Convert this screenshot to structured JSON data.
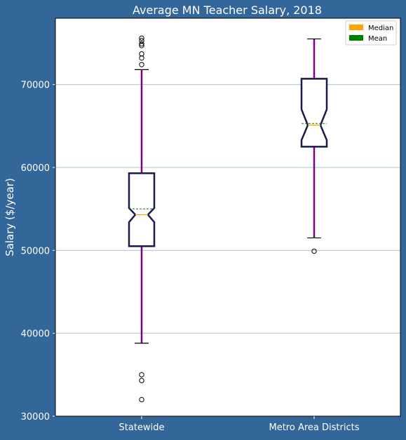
{
  "chart_data": {
    "type": "boxplot",
    "title": "Average MN Teacher Salary, 2018",
    "xlabel": "",
    "ylabel": "Salary ($/year)",
    "ylim": [
      30000,
      78000
    ],
    "yticks": [
      30000,
      40000,
      50000,
      60000,
      70000
    ],
    "ytick_labels": [
      "30000",
      "40000",
      "50000",
      "60000",
      "70000"
    ],
    "grid": "horizontal",
    "notched": true,
    "legend": {
      "position": "top-right",
      "entries": [
        {
          "label": "Median",
          "color": "#FFA500"
        },
        {
          "label": "Mean",
          "color": "#008000"
        }
      ]
    },
    "categories": [
      "Statewide",
      "Metro Area Districts"
    ],
    "boxes": [
      {
        "label": "Statewide",
        "whisker_low": 38800,
        "q1": 50500,
        "median": 54300,
        "mean": 55000,
        "q3": 59300,
        "whisker_high": 71800,
        "notch_low": 53400,
        "notch_high": 55100,
        "outliers": [
          32000,
          34300,
          35000,
          72400,
          73200,
          73700,
          74700,
          74900,
          75300,
          75600
        ]
      },
      {
        "label": "Metro Area Districts",
        "whisker_low": 51500,
        "q1": 62500,
        "median": 65100,
        "mean": 65300,
        "q3": 70700,
        "whisker_high": 75500,
        "notch_low": 63300,
        "notch_high": 67000,
        "outliers": [
          49900
        ]
      }
    ],
    "colors": {
      "background": "#336699",
      "plot_area": "#FFFFFF",
      "box_edge": "#1A1A4E",
      "whisker": "#800080",
      "cap": "#000000",
      "median": "#FFA500",
      "mean": "#008000",
      "grid": "#A8C4D8",
      "text": "#FFFFFF"
    }
  }
}
